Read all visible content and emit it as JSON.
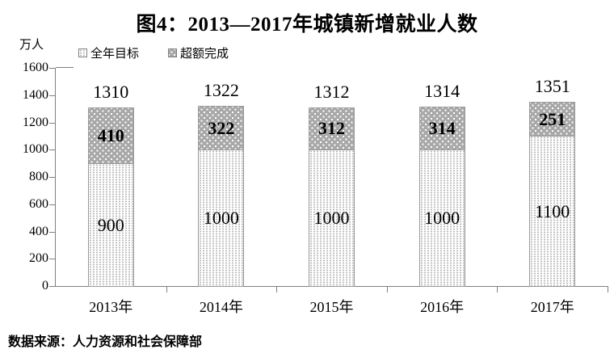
{
  "source_note": "数据来源：人力资源和社会保障部",
  "chart_data": {
    "type": "bar",
    "stacked": true,
    "title": "图4：2013—2017年城镇新增就业人数",
    "ylabel": "万人",
    "xlabel": "",
    "categories": [
      "2013年",
      "2014年",
      "2015年",
      "2016年",
      "2017年"
    ],
    "series": [
      {
        "name": "全年目标",
        "values": [
          900,
          1000,
          1000,
          1000,
          1100
        ]
      },
      {
        "name": "超额完成",
        "values": [
          410,
          322,
          312,
          314,
          251
        ]
      }
    ],
    "totals": [
      1310,
      1322,
      1312,
      1314,
      1351
    ],
    "ylim": [
      0,
      1600
    ],
    "ytick_step": 200,
    "grid": false,
    "legend_position": "top-left"
  },
  "colors": {
    "axis": "#808080",
    "text": "#000000",
    "target_fill": "#ffffff",
    "target_dots": "#b3b3b3",
    "over_fill": "#a8a8a8",
    "over_dots": "#ffffff"
  }
}
